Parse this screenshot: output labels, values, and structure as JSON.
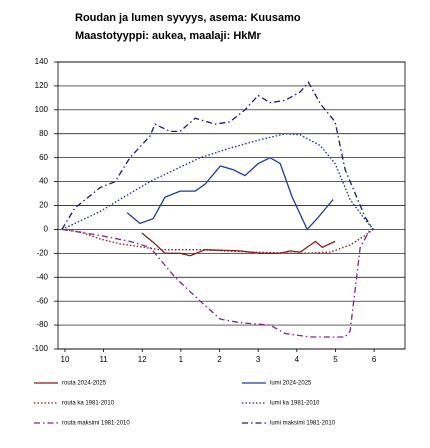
{
  "chart_data": {
    "type": "line",
    "title": "Roudan ja lumen syvyys, asema: Kuusamo",
    "subtitle": "Maastotyyppi: aukea, maalaji: HkMr",
    "xlim": [
      -0.18,
      8.8
    ],
    "xticks": [
      {
        "value": 0,
        "label": "10"
      },
      {
        "value": 1,
        "label": "11"
      },
      {
        "value": 2,
        "label": "12"
      },
      {
        "value": 3,
        "label": "1"
      },
      {
        "value": 4,
        "label": "2"
      },
      {
        "value": 5,
        "label": "3"
      },
      {
        "value": 6,
        "label": "4"
      },
      {
        "value": 7,
        "label": "5"
      },
      {
        "value": 8,
        "label": "6"
      }
    ],
    "ylim": [
      -100,
      140
    ],
    "yticks": [
      -100,
      -80,
      -60,
      -40,
      -20,
      0,
      20,
      40,
      60,
      80,
      100,
      120,
      140
    ],
    "grid": true,
    "series": [
      {
        "name": "routa 2024-2025",
        "color": "#8b1a1a",
        "line_style": "solid",
        "x": [
          1.99,
          2.33,
          2.59,
          2.98,
          3.24,
          3.63,
          4.53,
          5.05,
          5.57,
          5.83,
          6.09,
          6.48,
          6.66,
          6.99
        ],
        "values": [
          -3,
          -12,
          -20,
          -20,
          -22,
          -17,
          -18,
          -20,
          -20,
          -18,
          -19,
          -10,
          -15,
          -10
        ]
      },
      {
        "name": "lumi 2024-2025",
        "color": "#1c3aa0",
        "line_style": "solid",
        "x": [
          1.61,
          1.94,
          2.28,
          2.59,
          2.98,
          3.37,
          3.63,
          4.02,
          4.35,
          4.66,
          5.0,
          5.31,
          5.57,
          5.88,
          6.27,
          6.55,
          6.94
        ],
        "values": [
          14,
          5,
          9,
          27,
          32,
          32,
          38,
          53,
          50,
          45,
          55,
          60,
          55,
          27,
          0,
          10,
          25
        ]
      },
      {
        "name": "routa ka 1981-2010",
        "color": "#8b1a1a",
        "line_style": "dotted",
        "x": [
          -0.08,
          0.39,
          0.91,
          1.42,
          2.46,
          3.5,
          4.79,
          6.09,
          6.87,
          7.38,
          7.77,
          7.98
        ],
        "values": [
          0,
          -2,
          -8,
          -12,
          -17,
          -17,
          -19,
          -20,
          -19,
          -13,
          -5,
          0
        ]
      },
      {
        "name": "lumi ka 1981-2010",
        "color": "#1c2a8a",
        "line_style": "dotted",
        "x": [
          -0.08,
          0.26,
          0.91,
          1.42,
          2.2,
          2.85,
          3.5,
          4.27,
          5.05,
          5.7,
          6.09,
          6.61,
          6.99,
          7.38,
          7.77,
          7.98
        ],
        "values": [
          0,
          5,
          15,
          25,
          40,
          50,
          60,
          68,
          75,
          80,
          79,
          70,
          55,
          25,
          8,
          0
        ]
      },
      {
        "name": "routa maksimi 1981-2010",
        "color": "#7a2a7a",
        "line_style": "dashdot",
        "x": [
          -0.08,
          0.91,
          1.68,
          2.2,
          2.46,
          2.85,
          3.5,
          4.02,
          4.53,
          5.31,
          5.7,
          6.35,
          7.25,
          7.38,
          7.51,
          7.64,
          7.9
        ],
        "values": [
          0,
          -5,
          -10,
          -15,
          -25,
          -40,
          -60,
          -75,
          -78,
          -80,
          -87,
          -90,
          -90,
          -85,
          -50,
          -15,
          0
        ]
      },
      {
        "name": "lumi maksimi 1981-2010",
        "color": "#1a1a7a",
        "line_style": "dashdot",
        "x": [
          -0.08,
          0.26,
          0.91,
          1.3,
          1.68,
          2.2,
          2.33,
          2.72,
          2.98,
          3.37,
          3.89,
          4.27,
          4.66,
          5.0,
          5.31,
          5.7,
          6.09,
          6.3,
          6.61,
          6.99,
          7.25,
          7.51,
          7.77,
          7.98
        ],
        "values": [
          0,
          18,
          35,
          40,
          60,
          78,
          88,
          82,
          82,
          93,
          88,
          90,
          100,
          112,
          106,
          108,
          115,
          123,
          105,
          90,
          50,
          30,
          10,
          0
        ]
      }
    ]
  }
}
